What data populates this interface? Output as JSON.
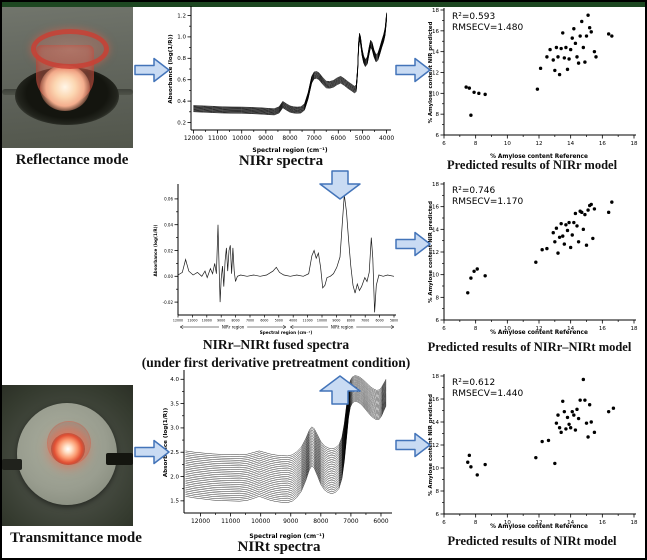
{
  "figure": {
    "captions": {
      "reflectance": "Reflectance mode",
      "transmittance": "Transmittance mode",
      "nirr_spectra": "NIRr spectra",
      "nirt_spectra": "NIRt spectra",
      "fused_line1": "NIRr–NIRt fused spectra",
      "fused_line2": "(under first derivative pretreatment condition)",
      "pred_nirr": "Predicted results of NIRr model",
      "pred_fused": "Predicted results of NIRr–NIRt model",
      "pred_nirt": "Predicted results of NIRt model"
    },
    "colors": {
      "arrow_fill": "#c9dbf3",
      "arrow_stroke": "#4374b9",
      "top_strip": "#1d4721",
      "border": "#000000"
    }
  },
  "chart_data": [
    {
      "id": "plot-nirr",
      "type": "line",
      "title": "NIRr spectra",
      "xlabel": "Spectral region (cm⁻¹)",
      "ylabel": "Absorbance (log(1/R))",
      "xlim": [
        12100,
        3900
      ],
      "ylim": [
        0.13,
        1.27
      ],
      "xticks": [
        12000,
        11000,
        10000,
        9000,
        8000,
        7000,
        6000,
        5000,
        4000
      ],
      "yticks": [
        0.2,
        0.4,
        0.6,
        0.8,
        1.0,
        1.2
      ],
      "ytick_labels": [
        "0.2",
        "0.4",
        "0.6",
        "0.8",
        "1.0",
        "1.2"
      ],
      "n_lines": 16,
      "spread": 0.03,
      "compress": -0.25,
      "curve": [
        [
          12000,
          0.33
        ],
        [
          11600,
          0.326
        ],
        [
          11200,
          0.322
        ],
        [
          10800,
          0.318
        ],
        [
          10400,
          0.316
        ],
        [
          10000,
          0.315
        ],
        [
          9600,
          0.312
        ],
        [
          9200,
          0.308
        ],
        [
          8900,
          0.303
        ],
        [
          8650,
          0.3
        ],
        [
          8450,
          0.318
        ],
        [
          8300,
          0.368
        ],
        [
          8150,
          0.345
        ],
        [
          8000,
          0.326
        ],
        [
          7850,
          0.318
        ],
        [
          7700,
          0.315
        ],
        [
          7550,
          0.318
        ],
        [
          7400,
          0.345
        ],
        [
          7250,
          0.45
        ],
        [
          7100,
          0.6
        ],
        [
          7000,
          0.64
        ],
        [
          6900,
          0.645
        ],
        [
          6800,
          0.632
        ],
        [
          6650,
          0.59
        ],
        [
          6500,
          0.555
        ],
        [
          6350,
          0.552
        ],
        [
          6200,
          0.562
        ],
        [
          6050,
          0.585
        ],
        [
          5900,
          0.6
        ],
        [
          5750,
          0.578
        ],
        [
          5600,
          0.55
        ],
        [
          5450,
          0.527
        ],
        [
          5330,
          0.507
        ],
        [
          5260,
          0.52
        ],
        [
          5200,
          0.68
        ],
        [
          5160,
          0.92
        ],
        [
          5120,
          1.0
        ],
        [
          5080,
          0.97
        ],
        [
          5020,
          0.86
        ],
        [
          4950,
          0.79
        ],
        [
          4880,
          0.755
        ],
        [
          4800,
          0.78
        ],
        [
          4720,
          0.875
        ],
        [
          4660,
          0.935
        ],
        [
          4600,
          0.915
        ],
        [
          4520,
          0.845
        ],
        [
          4440,
          0.8
        ],
        [
          4360,
          0.815
        ],
        [
          4280,
          0.87
        ],
        [
          4200,
          0.935
        ],
        [
          4120,
          0.99
        ],
        [
          4060,
          1.05
        ],
        [
          4000,
          1.19
        ]
      ]
    },
    {
      "id": "plot-fused",
      "type": "line",
      "title": "NIRr–NIRt fused spectra (under first derivative pretreatment condition)",
      "xlabel": "Spectral region (cm⁻¹)",
      "ylabel": "Absorbance (log(1/R))",
      "xlim": [
        0,
        100
      ],
      "ylim": [
        -0.03,
        0.07
      ],
      "xtick_labels": [
        "12000",
        "11000",
        "10000",
        "9000",
        "8000",
        "7000",
        "6000",
        "5000",
        "4000",
        "11000",
        "10000",
        "9000",
        "8000",
        "7000",
        "6000",
        "5800"
      ],
      "yticks": [
        0.06,
        0.04,
        0.02,
        0,
        -0.02
      ],
      "ytick_labels": [
        "0.06",
        "0.04",
        "0.02",
        "0.00",
        "-0.02"
      ],
      "regions": [
        {
          "label": "NIRr region",
          "from": 0.01,
          "to": 0.5
        },
        {
          "label": "NIRt region",
          "from": 0.52,
          "to": 1.0
        }
      ],
      "n_lines": 1,
      "curve": [
        [
          0,
          0.001
        ],
        [
          2,
          0.003
        ],
        [
          3.5,
          0.013
        ],
        [
          5,
          0.004
        ],
        [
          7,
          0.001
        ],
        [
          9,
          0.003
        ],
        [
          11,
          0.0
        ],
        [
          12.5,
          0.004
        ],
        [
          13.5,
          -0.001
        ],
        [
          15,
          0.006
        ],
        [
          16,
          0.002
        ],
        [
          17,
          0.01
        ],
        [
          17.8,
          0.002
        ],
        [
          18.5,
          0.04
        ],
        [
          19,
          0.01
        ],
        [
          19.5,
          -0.02
        ],
        [
          20,
          -0.002
        ],
        [
          20.6,
          0.008
        ],
        [
          21.2,
          -0.008
        ],
        [
          21.8,
          0.012
        ],
        [
          22.4,
          0.022
        ],
        [
          23,
          0.004
        ],
        [
          23.6,
          0.02
        ],
        [
          24.2,
          0.024
        ],
        [
          24.8,
          0.002
        ],
        [
          25.4,
          0.022
        ],
        [
          26,
          0.004
        ],
        [
          26.6,
          -0.004
        ],
        [
          27.5,
          0.0
        ],
        [
          29,
          0.001
        ],
        [
          32,
          0.0
        ],
        [
          35,
          0.001
        ],
        [
          38,
          0.0
        ],
        [
          41,
          0.001
        ],
        [
          44,
          0.004
        ],
        [
          45.5,
          0.007
        ],
        [
          47,
          0.003
        ],
        [
          49,
          0.001
        ],
        [
          52,
          0.0
        ],
        [
          55,
          0.001
        ],
        [
          58,
          0.0
        ],
        [
          60.5,
          0.002
        ],
        [
          62,
          0.016
        ],
        [
          63,
          0.02
        ],
        [
          64,
          0.014
        ],
        [
          65,
          0.018
        ],
        [
          66,
          0.007
        ],
        [
          67,
          -0.009
        ],
        [
          68,
          -0.007
        ],
        [
          69,
          -0.001
        ],
        [
          70.5,
          0.0
        ],
        [
          72,
          0.002
        ],
        [
          73.5,
          0.007
        ],
        [
          75,
          0.015
        ],
        [
          76,
          0.04
        ],
        [
          77,
          0.063
        ],
        [
          78,
          0.05
        ],
        [
          79,
          0.028
        ],
        [
          80,
          0.008
        ],
        [
          81,
          -0.007
        ],
        [
          82,
          -0.013
        ],
        [
          83,
          -0.006
        ],
        [
          84,
          -0.011
        ],
        [
          85,
          -0.008
        ],
        [
          86.5,
          -0.001
        ],
        [
          87.5,
          -0.004
        ],
        [
          88.5,
          0.003
        ],
        [
          89.5,
          0.03
        ],
        [
          90.2,
          0.014
        ],
        [
          91,
          -0.028
        ],
        [
          91.8,
          -0.007
        ],
        [
          93,
          0.001
        ],
        [
          95,
          0.0
        ],
        [
          97,
          0.001
        ],
        [
          100,
          0.0
        ]
      ]
    },
    {
      "id": "plot-nirt",
      "type": "line",
      "title": "NIRt spectra",
      "xlabel": "Spectral region (cm⁻¹)",
      "ylabel": "Absorbance (log(1/R))",
      "xlim": [
        12550,
        5700
      ],
      "ylim": [
        1.25,
        4.15
      ],
      "xticks": [
        12000,
        11000,
        10000,
        9000,
        8000,
        7000,
        6000
      ],
      "yticks": [
        1.5,
        2.0,
        2.5,
        3.0,
        3.5,
        4.0
      ],
      "ytick_labels": [
        "1.5",
        "2.0",
        "2.5",
        "3.0",
        "3.5",
        "4.0"
      ],
      "n_lines": 26,
      "spread": 0.48,
      "compress": 0.45,
      "curve": [
        [
          12500,
          2.06
        ],
        [
          12200,
          2.03
        ],
        [
          11900,
          2.01
        ],
        [
          11600,
          1.99
        ],
        [
          11300,
          1.98
        ],
        [
          11000,
          1.975
        ],
        [
          10700,
          1.97
        ],
        [
          10450,
          1.985
        ],
        [
          10250,
          2.02
        ],
        [
          10050,
          2.06
        ],
        [
          9900,
          2.03
        ],
        [
          9700,
          1.99
        ],
        [
          9500,
          1.965
        ],
        [
          9300,
          1.95
        ],
        [
          9100,
          1.945
        ],
        [
          8950,
          1.97
        ],
        [
          8800,
          2.04
        ],
        [
          8650,
          2.15
        ],
        [
          8500,
          2.35
        ],
        [
          8380,
          2.55
        ],
        [
          8300,
          2.62
        ],
        [
          8220,
          2.58
        ],
        [
          8100,
          2.42
        ],
        [
          8000,
          2.28
        ],
        [
          7880,
          2.18
        ],
        [
          7760,
          2.13
        ],
        [
          7640,
          2.11
        ],
        [
          7520,
          2.13
        ],
        [
          7400,
          2.2
        ],
        [
          7300,
          2.38
        ],
        [
          7220,
          2.7
        ],
        [
          7150,
          3.1
        ],
        [
          7080,
          3.5
        ],
        [
          7020,
          3.7
        ],
        [
          6950,
          3.78
        ],
        [
          6870,
          3.81
        ],
        [
          6780,
          3.8
        ],
        [
          6690,
          3.77
        ],
        [
          6600,
          3.72
        ],
        [
          6510,
          3.66
        ],
        [
          6420,
          3.6
        ],
        [
          6330,
          3.54
        ],
        [
          6240,
          3.5
        ],
        [
          6150,
          3.47
        ],
        [
          6060,
          3.48
        ],
        [
          5980,
          3.54
        ],
        [
          5920,
          3.62
        ],
        [
          5870,
          3.68
        ],
        [
          5830,
          3.73
        ]
      ]
    },
    {
      "id": "scatter-nirr",
      "type": "scatter",
      "title": "Predicted results of NIRr model",
      "r2_label": "R²=0.593",
      "rmsecv_label": "RMSECV=1.480",
      "xlabel": "% Amylose content Reference",
      "ylabel": "% Amylose content NIR predicted",
      "xlim": [
        6,
        18
      ],
      "ylim": [
        6,
        18
      ],
      "xticks": [
        6,
        8,
        10,
        12,
        14,
        16,
        18
      ],
      "yticks": [
        6,
        8,
        10,
        12,
        14,
        16,
        18
      ],
      "points": [
        [
          7.4,
          10.6
        ],
        [
          7.6,
          10.5
        ],
        [
          7.9,
          10.1
        ],
        [
          8.2,
          10.0
        ],
        [
          8.6,
          9.9
        ],
        [
          7.7,
          7.9
        ],
        [
          11.9,
          10.4
        ],
        [
          12.1,
          12.4
        ],
        [
          12.5,
          13.5
        ],
        [
          12.7,
          14.2
        ],
        [
          12.9,
          13.2
        ],
        [
          13.0,
          12.2
        ],
        [
          13.1,
          14.4
        ],
        [
          13.2,
          13.5
        ],
        [
          13.3,
          11.8
        ],
        [
          13.4,
          14.3
        ],
        [
          13.5,
          15.8
        ],
        [
          13.6,
          13.4
        ],
        [
          13.7,
          14.4
        ],
        [
          13.8,
          12.3
        ],
        [
          13.9,
          13.3
        ],
        [
          14.0,
          14.2
        ],
        [
          14.1,
          15.3
        ],
        [
          14.2,
          16.2
        ],
        [
          14.3,
          14.8
        ],
        [
          14.4,
          13.5
        ],
        [
          14.5,
          12.9
        ],
        [
          14.6,
          15.5
        ],
        [
          14.7,
          16.9
        ],
        [
          14.8,
          14.4
        ],
        [
          14.9,
          13.0
        ],
        [
          15.0,
          15.5
        ],
        [
          15.1,
          17.5
        ],
        [
          15.2,
          16.3
        ],
        [
          15.3,
          15.9
        ],
        [
          15.5,
          14.0
        ],
        [
          15.6,
          13.5
        ],
        [
          16.4,
          15.7
        ],
        [
          16.6,
          15.5
        ]
      ]
    },
    {
      "id": "scatter-fused",
      "type": "scatter",
      "title": "Predicted results of NIRr–NIRt model",
      "r2_label": "R²=0.746",
      "rmsecv_label": "RMSECV=1.170",
      "xlabel": "% Amylose content Reference",
      "ylabel": "% Amylose content NIR predicted",
      "xlim": [
        6,
        18
      ],
      "ylim": [
        6,
        18
      ],
      "xticks": [
        6,
        8,
        10,
        12,
        14,
        16,
        18
      ],
      "yticks": [
        6,
        8,
        10,
        12,
        14,
        16,
        18
      ],
      "points": [
        [
          7.5,
          8.4
        ],
        [
          7.7,
          9.7
        ],
        [
          7.9,
          10.3
        ],
        [
          8.1,
          10.5
        ],
        [
          8.6,
          9.9
        ],
        [
          11.8,
          11.1
        ],
        [
          12.2,
          12.2
        ],
        [
          12.5,
          12.3
        ],
        [
          12.9,
          13.7
        ],
        [
          13.0,
          12.9
        ],
        [
          13.1,
          14.1
        ],
        [
          13.2,
          11.9
        ],
        [
          13.3,
          13.3
        ],
        [
          13.4,
          14.5
        ],
        [
          13.5,
          13.4
        ],
        [
          13.6,
          12.7
        ],
        [
          13.7,
          14.4
        ],
        [
          13.8,
          13.9
        ],
        [
          13.9,
          14.6
        ],
        [
          14.0,
          12.4
        ],
        [
          14.1,
          13.5
        ],
        [
          14.2,
          14.6
        ],
        [
          14.3,
          15.4
        ],
        [
          14.4,
          14.3
        ],
        [
          14.5,
          12.9
        ],
        [
          14.6,
          15.6
        ],
        [
          14.7,
          15.5
        ],
        [
          14.8,
          14.0
        ],
        [
          14.9,
          15.3
        ],
        [
          15.0,
          12.6
        ],
        [
          15.1,
          15.7
        ],
        [
          15.2,
          16.1
        ],
        [
          15.3,
          16.2
        ],
        [
          15.4,
          13.2
        ],
        [
          15.5,
          15.8
        ],
        [
          16.4,
          15.5
        ],
        [
          16.6,
          16.4
        ]
      ]
    },
    {
      "id": "scatter-nirt",
      "type": "scatter",
      "title": "Predicted results of NIRt model",
      "r2_label": "R²=0.612",
      "rmsecv_label": "RMSECV=1.440",
      "xlabel": "% Amylose content Reference",
      "ylabel": "% Amylose content NIR predicted",
      "xlim": [
        6,
        18
      ],
      "ylim": [
        6,
        18
      ],
      "xticks": [
        6,
        8,
        10,
        12,
        14,
        16,
        18
      ],
      "yticks": [
        6,
        8,
        10,
        12,
        14,
        16,
        18
      ],
      "points": [
        [
          7.5,
          10.5
        ],
        [
          7.6,
          11.1
        ],
        [
          7.7,
          10.1
        ],
        [
          8.1,
          9.4
        ],
        [
          8.6,
          10.3
        ],
        [
          11.8,
          10.9
        ],
        [
          12.2,
          12.3
        ],
        [
          12.6,
          12.4
        ],
        [
          13.0,
          10.4
        ],
        [
          13.1,
          13.9
        ],
        [
          13.2,
          14.6
        ],
        [
          13.3,
          13.5
        ],
        [
          13.4,
          13.1
        ],
        [
          13.5,
          15.8
        ],
        [
          13.6,
          14.9
        ],
        [
          13.7,
          13.4
        ],
        [
          13.8,
          14.4
        ],
        [
          13.9,
          13.8
        ],
        [
          14.0,
          13.5
        ],
        [
          14.1,
          14.9
        ],
        [
          14.2,
          14.6
        ],
        [
          14.3,
          13.3
        ],
        [
          14.4,
          15.1
        ],
        [
          14.5,
          14.3
        ],
        [
          14.6,
          15.9
        ],
        [
          14.8,
          17.7
        ],
        [
          14.9,
          15.9
        ],
        [
          15.0,
          13.9
        ],
        [
          15.1,
          12.7
        ],
        [
          15.2,
          15.5
        ],
        [
          15.3,
          14.0
        ],
        [
          15.5,
          13.1
        ],
        [
          16.4,
          14.9
        ],
        [
          16.7,
          15.2
        ]
      ]
    }
  ]
}
